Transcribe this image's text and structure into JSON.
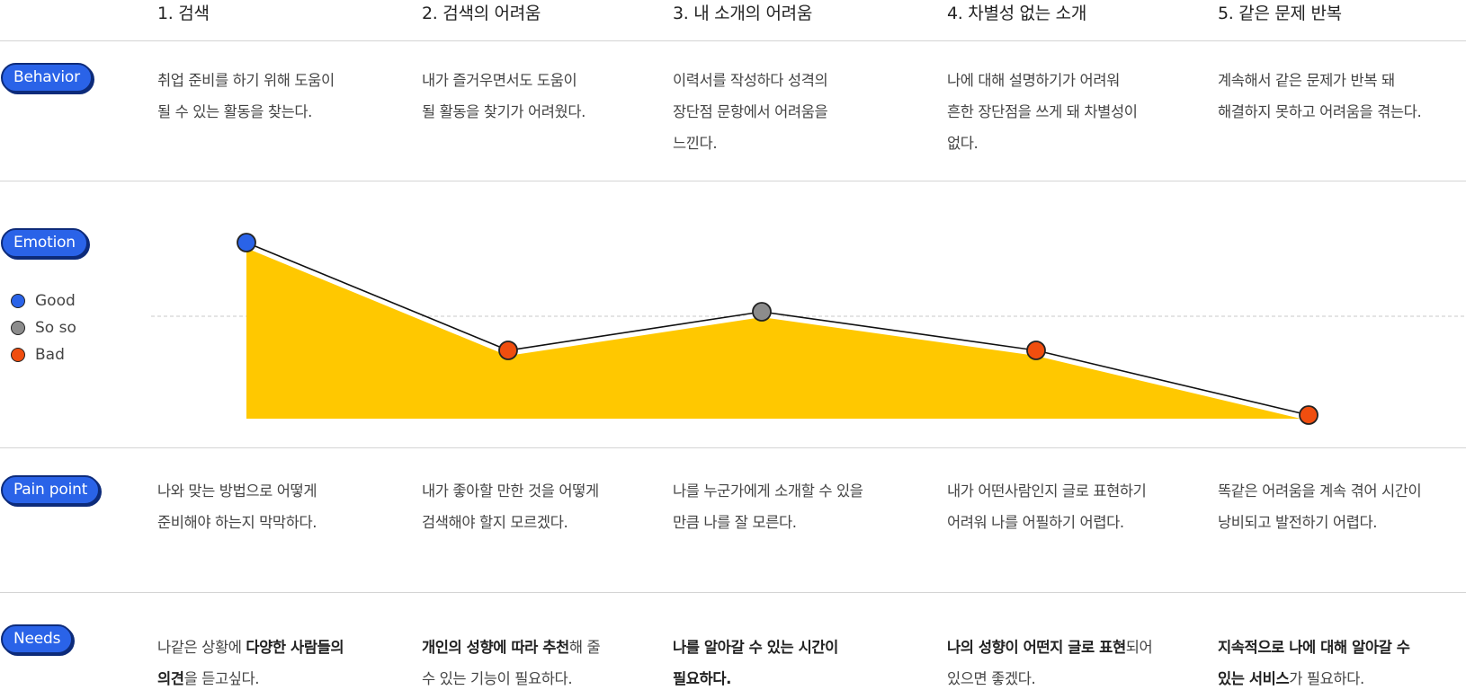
{
  "stages": [
    {
      "title": "1. 검색"
    },
    {
      "title": "2. 검색의 어려움"
    },
    {
      "title": "3. 내 소개의 어려움"
    },
    {
      "title": "4. 차별성 없는 소개"
    },
    {
      "title": "5. 같은 문제 반복"
    }
  ],
  "rows": {
    "behavior": {
      "label": "Behavior",
      "cells": [
        {
          "lines": [
            "취업 준비를 하기 위해 도움이",
            "될 수 있는 활동을 찾는다."
          ]
        },
        {
          "lines": [
            "내가 즐거우면서도 도움이",
            "될 활동을 찾기가 어려웠다."
          ]
        },
        {
          "lines": [
            "이력서를 작성하다 성격의",
            "장단점 문항에서 어려움을",
            "느낀다."
          ]
        },
        {
          "lines": [
            "나에 대해 설명하기가 어려워",
            "흔한 장단점을 쓰게 돼 차별성이",
            "없다."
          ]
        },
        {
          "lines": [
            "계속해서 같은 문제가 반복 돼",
            "해결하지 못하고 어려움을 겪는다."
          ]
        }
      ]
    },
    "emotion": {
      "label": "Emotion"
    },
    "pain_point": {
      "label": "Pain point",
      "cells": [
        {
          "lines": [
            "나와 맞는 방법으로 어떻게",
            "준비해야 하는지 막막하다."
          ]
        },
        {
          "lines": [
            "내가 좋아할 만한 것을 어떻게",
            "검색해야 할지 모르겠다."
          ]
        },
        {
          "lines": [
            "나를 누군가에게 소개할 수 있을",
            "만큼 나를 잘 모른다."
          ]
        },
        {
          "lines": [
            "내가 어떤사람인지 글로 표현하기",
            "어려워 나를 어필하기 어렵다."
          ]
        },
        {
          "lines": [
            "똑같은 어려움을 계속 겪어 시간이",
            "낭비되고 발전하기 어렵다."
          ]
        }
      ]
    },
    "needs": {
      "label": "Needs",
      "cells": [
        {
          "line1a": "나같은 상황에 ",
          "line1b": "다양한 사람들의",
          "line2a": "의견",
          "line2b": "을 듣고싶다."
        },
        {
          "line1a": "개인의 성향에 따라 추천",
          "line1b": "해 줄",
          "line2a": "",
          "line2b": "수 있는 기능이 필요하다."
        },
        {
          "line1a": "나를 알아갈 수 있는 시간이",
          "line1b": "",
          "line2a": "필요하다.",
          "line2b": ""
        },
        {
          "line1a": "나의 성향이 어떤지 글로 표현",
          "line1b": "되어",
          "line2a": "",
          "line2b": "있으면 좋겠다."
        },
        {
          "line1a": "지속적으로 나에 대해 알아갈 수",
          "line1b": "",
          "line2a": "있는 서비스",
          "line2b": "가 필요하다."
        }
      ]
    }
  },
  "legend": [
    {
      "label": "Good",
      "color": "#2a63e8"
    },
    {
      "label": "So so",
      "color": "#8c8c8c"
    },
    {
      "label": "Bad",
      "color": "#f04e0f"
    }
  ],
  "chart_data": {
    "type": "line",
    "categories": [
      "1. 검색",
      "2. 검색의 어려움",
      "3. 내 소개의 어려움",
      "4. 차별성 없는 소개",
      "5. 같은 문제 반복"
    ],
    "series": [
      {
        "values": [
          "Good",
          "Bad",
          "So so",
          "Bad",
          "Bad"
        ]
      }
    ],
    "levels": [
      "Bad",
      "So so",
      "Good"
    ],
    "area_fill": "#ffc800",
    "line_color": "#111111",
    "grid": false,
    "midline": true
  }
}
